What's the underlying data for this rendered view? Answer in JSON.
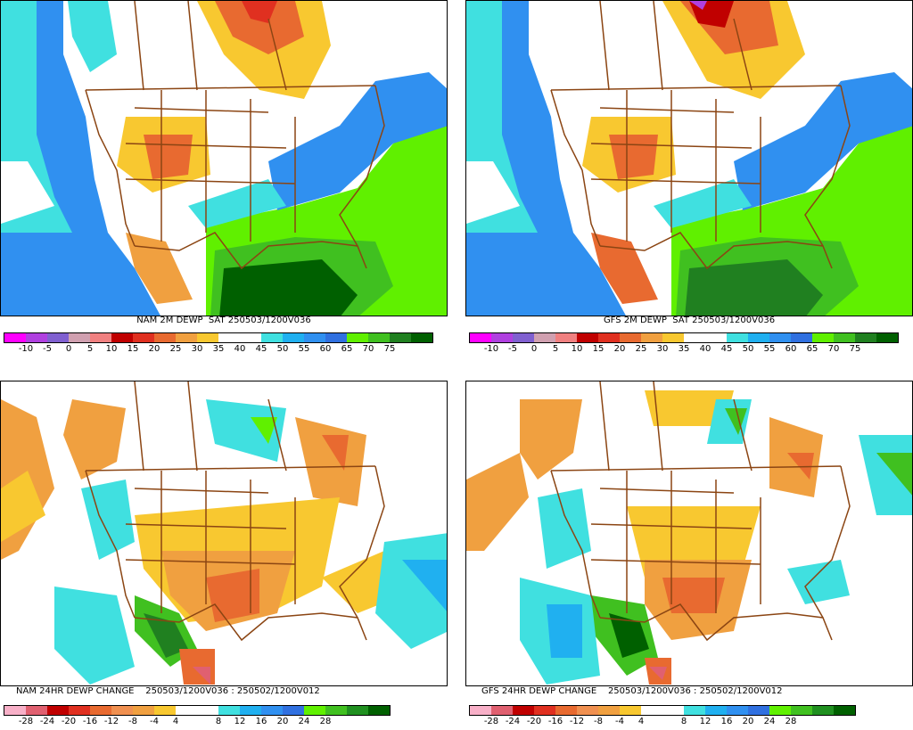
{
  "panels": {
    "nam_dewp": {
      "caption": "NAM 2M DEWP  SAT 250503/1200V036"
    },
    "gfs_dewp": {
      "caption": "GFS 2M DEWP  SAT 250503/1200V036"
    },
    "nam_change": {
      "caption": "NAM 24HR DEWP CHANGE    250503/1200V036 : 250502/1200V012"
    },
    "gfs_change": {
      "caption": "GFS 24HR DEWP CHANGE    250503/1200V036 : 250502/1200V012"
    }
  },
  "dewp_scale": {
    "colors": [
      "#ff00ff",
      "#b040e0",
      "#8060d0",
      "#d0a0b0",
      "#f08080",
      "#c00000",
      "#e03020",
      "#e86a30",
      "#f0a040",
      "#f8c830",
      "#ffffff",
      "#ffffff",
      "#40e0e0",
      "#20b0f0",
      "#3090f0",
      "#3070e0",
      "#60f000",
      "#40c020",
      "#208020",
      "#006000"
    ],
    "ticks": [
      "-10",
      "-5",
      "0",
      "5",
      "10",
      "15",
      "20",
      "25",
      "30",
      "35",
      "40",
      "45",
      "50",
      "55",
      "60",
      "65",
      "70",
      "75"
    ]
  },
  "change_scale": {
    "colors": [
      "#f8b0c8",
      "#e06070",
      "#c00000",
      "#e03020",
      "#e86a30",
      "#f09050",
      "#f0a040",
      "#f8c830",
      "#ffffff",
      "#ffffff",
      "#40e0e0",
      "#20b0f0",
      "#3090f0",
      "#3070e0",
      "#60f000",
      "#40c020",
      "#209020",
      "#006000"
    ],
    "ticks": [
      "-28",
      "-24",
      "-20",
      "-16",
      "-12",
      "-8",
      "-4",
      "4",
      "8",
      "12",
      "16",
      "20",
      "24",
      "28"
    ]
  },
  "colors": {
    "border": "#8b4513",
    "ocean_cool": "#3090f0",
    "ocean_cyan": "#40e0e0",
    "gulf_green": "#006000",
    "atlantic_green": "#60f000"
  }
}
